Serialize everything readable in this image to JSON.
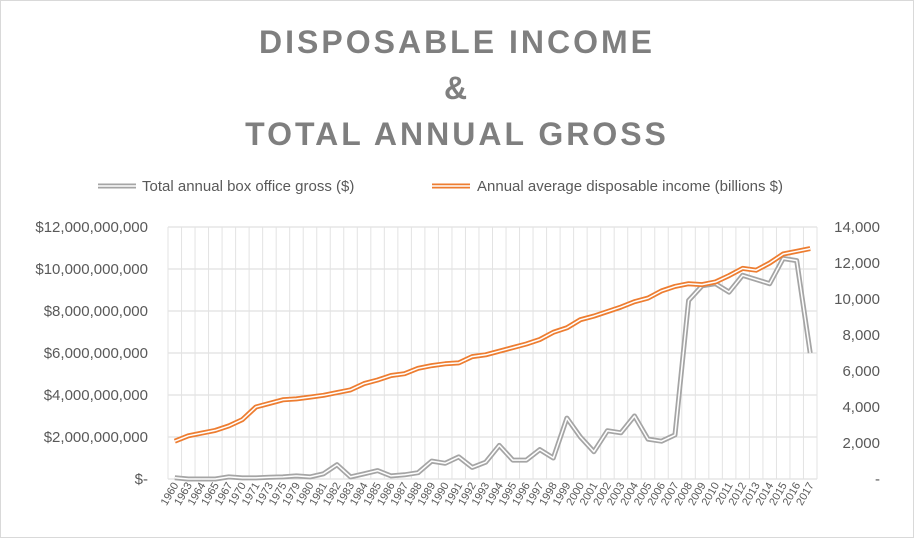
{
  "chart_data": {
    "type": "line",
    "title_lines": [
      "DISPOSABLE INCOME",
      "&",
      "TOTAL ANNUAL GROSS"
    ],
    "categories": [
      "1960",
      "1963",
      "1964",
      "1965",
      "1967",
      "1970",
      "1971",
      "1973",
      "1975",
      "1979",
      "1980",
      "1981",
      "1982",
      "1983",
      "1984",
      "1985",
      "1986",
      "1987",
      "1988",
      "1989",
      "1990",
      "1991",
      "1992",
      "1993",
      "1994",
      "1995",
      "1996",
      "1997",
      "1998",
      "1999",
      "2000",
      "2001",
      "2002",
      "2003",
      "2004",
      "2005",
      "2006",
      "2007",
      "2008",
      "2009",
      "2010",
      "2011",
      "2012",
      "2013",
      "2014",
      "2015",
      "2016",
      "2017"
    ],
    "series": [
      {
        "name": "Total annual box office gross ($)",
        "axis": "left",
        "color": "#a5a5a5",
        "values": [
          60000000,
          0,
          0,
          0,
          100000000,
          50000000,
          50000000,
          80000000,
          100000000,
          150000000,
          100000000,
          250000000,
          680000000,
          100000000,
          250000000,
          400000000,
          150000000,
          200000000,
          300000000,
          850000000,
          750000000,
          1050000000,
          550000000,
          800000000,
          1600000000,
          900000000,
          900000000,
          1400000000,
          1000000000,
          2900000000,
          2000000000,
          1300000000,
          2300000000,
          2200000000,
          3000000000,
          1900000000,
          1800000000,
          2100000000,
          8500000000,
          9200000000,
          9300000000,
          8900000000,
          9700000000,
          9500000000,
          9300000000,
          10500000000,
          10400000000,
          6000000000
        ]
      },
      {
        "name": "Annual average disposable income (billions $)",
        "axis": "right",
        "color": "#ed7d31",
        "values": [
          2100,
          2400,
          2550,
          2700,
          2950,
          3300,
          4000,
          4200,
          4400,
          4450,
          4550,
          4650,
          4800,
          4950,
          5300,
          5500,
          5750,
          5850,
          6150,
          6300,
          6400,
          6450,
          6800,
          6900,
          7100,
          7300,
          7500,
          7750,
          8150,
          8400,
          8850,
          9050,
          9300,
          9550,
          9850,
          10050,
          10450,
          10700,
          10850,
          10800,
          10950,
          11300,
          11700,
          11600,
          12000,
          12500,
          12650,
          12800
        ]
      }
    ],
    "y_left": {
      "min": 0,
      "max": 12000000000,
      "step": 2000000000,
      "tick_labels": [
        "$-",
        "$2,000,000,000",
        "$4,000,000,000",
        "$6,000,000,000",
        "$8,000,000,000",
        "$10,000,000,000",
        "$12,000,000,000"
      ]
    },
    "y_right": {
      "min": 0,
      "max": 14000,
      "step": 2000,
      "tick_labels": [
        "-",
        "2,000",
        "4,000",
        "6,000",
        "8,000",
        "10,000",
        "12,000",
        "14,000"
      ]
    },
    "grid": true,
    "legend_position": "top"
  }
}
